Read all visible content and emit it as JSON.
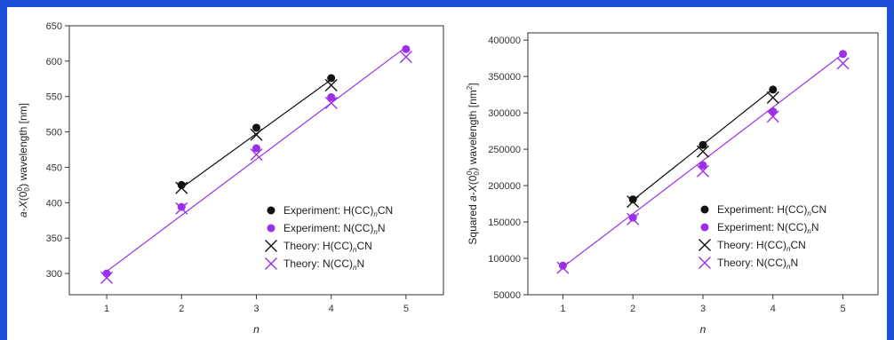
{
  "chart_data": [
    {
      "type": "scatter",
      "xlabel": "n",
      "ylabel_parts": {
        "pre": "",
        "a": "a",
        "dash": "-",
        "X": "X",
        "paren_open": "(0",
        "sub": "0",
        "sup": "0",
        "paren_close": ")",
        "post": " wavelength [nm]"
      },
      "xlim": [
        0.5,
        5.5
      ],
      "ylim": [
        270,
        650
      ],
      "xticks": [
        "1",
        "2",
        "3",
        "4",
        "5"
      ],
      "yticks": [
        "300",
        "350",
        "400",
        "450",
        "500",
        "550",
        "600",
        "650"
      ],
      "xtick_values": [
        1,
        2,
        3,
        4,
        5
      ],
      "ytick_values": [
        300,
        350,
        400,
        450,
        500,
        550,
        600,
        650
      ],
      "series": [
        {
          "name": "Experiment: H(CC)nCN",
          "legend": {
            "pre": "Experiment: H(CC)",
            "sub": "n",
            "post": "CN"
          },
          "marker": "dot",
          "color": "#111111",
          "x": [
            2,
            3,
            4
          ],
          "values": [
            425,
            506,
            576
          ]
        },
        {
          "name": "Experiment: N(CC)nN",
          "legend": {
            "pre": "Experiment: N(CC)",
            "sub": "n",
            "post": "N"
          },
          "marker": "dot",
          "color": "#9b30e8",
          "x": [
            1,
            2,
            3,
            4,
            5
          ],
          "values": [
            300,
            394,
            477,
            549,
            617
          ]
        },
        {
          "name": "Theory: H(CC)nCN",
          "legend": {
            "pre": "Theory: H(CC)",
            "sub": "n",
            "post": "CN"
          },
          "marker": "cross",
          "color": "#111111",
          "x": [
            2,
            3,
            4
          ],
          "values": [
            421,
            496,
            566
          ]
        },
        {
          "name": "Theory: N(CC)nN",
          "legend": {
            "pre": "Theory: N(CC)",
            "sub": "n",
            "post": "N"
          },
          "marker": "cross",
          "color": "#9b30e8",
          "x": [
            1,
            2,
            3,
            4,
            5
          ],
          "values": [
            294,
            392,
            468,
            541,
            606
          ]
        }
      ],
      "fits": [
        {
          "color": "#111111",
          "x": [
            2,
            4
          ],
          "values": [
            421,
            574
          ]
        },
        {
          "color": "#9b30e8",
          "x": [
            1,
            5
          ],
          "values": [
            303,
            620
          ]
        }
      ]
    },
    {
      "type": "scatter",
      "xlabel": "n",
      "ylabel_parts": {
        "pre": "Squared ",
        "a": "a",
        "dash": "-",
        "X": "X",
        "paren_open": "(0",
        "sub": "0",
        "sup": "0",
        "paren_close": ")",
        "post": " wavelength [nm",
        "unit_sup": "2",
        "unit_close": "]"
      },
      "xlim": [
        0.5,
        5.5
      ],
      "ylim": [
        50000,
        410000
      ],
      "xticks": [
        "1",
        "2",
        "3",
        "4",
        "5"
      ],
      "yticks": [
        "50000",
        "100000",
        "150000",
        "200000",
        "250000",
        "300000",
        "350000",
        "400000"
      ],
      "xtick_values": [
        1,
        2,
        3,
        4,
        5
      ],
      "ytick_values": [
        50000,
        100000,
        150000,
        200000,
        250000,
        300000,
        350000,
        400000
      ],
      "series": [
        {
          "name": "Experiment: H(CC)nCN",
          "legend": {
            "pre": "Experiment: H(CC)",
            "sub": "n",
            "post": "CN"
          },
          "marker": "dot",
          "color": "#111111",
          "x": [
            2,
            3,
            4
          ],
          "values": [
            181000,
            256000,
            332000
          ]
        },
        {
          "name": "Experiment: N(CC)nN",
          "legend": {
            "pre": "Experiment: N(CC)",
            "sub": "n",
            "post": "N"
          },
          "marker": "dot",
          "color": "#9b30e8",
          "x": [
            1,
            2,
            3,
            4,
            5
          ],
          "values": [
            90000,
            156000,
            228000,
            302000,
            381000
          ]
        },
        {
          "name": "Theory: H(CC)nCN",
          "legend": {
            "pre": "Theory: H(CC)",
            "sub": "n",
            "post": "CN"
          },
          "marker": "cross",
          "color": "#111111",
          "x": [
            2,
            3,
            4
          ],
          "values": [
            178000,
            247000,
            321000
          ]
        },
        {
          "name": "Theory: N(CC)nN",
          "legend": {
            "pre": "Theory: N(CC)",
            "sub": "n",
            "post": "N"
          },
          "marker": "cross",
          "color": "#9b30e8",
          "x": [
            1,
            2,
            3,
            4,
            5
          ],
          "values": [
            87000,
            154000,
            220000,
            295000,
            368000
          ]
        }
      ],
      "fits": [
        {
          "color": "#111111",
          "x": [
            2,
            4
          ],
          "values": [
            180000,
            333000
          ]
        },
        {
          "color": "#9b30e8",
          "x": [
            1,
            5
          ],
          "values": [
            88000,
            381000
          ]
        }
      ]
    }
  ]
}
